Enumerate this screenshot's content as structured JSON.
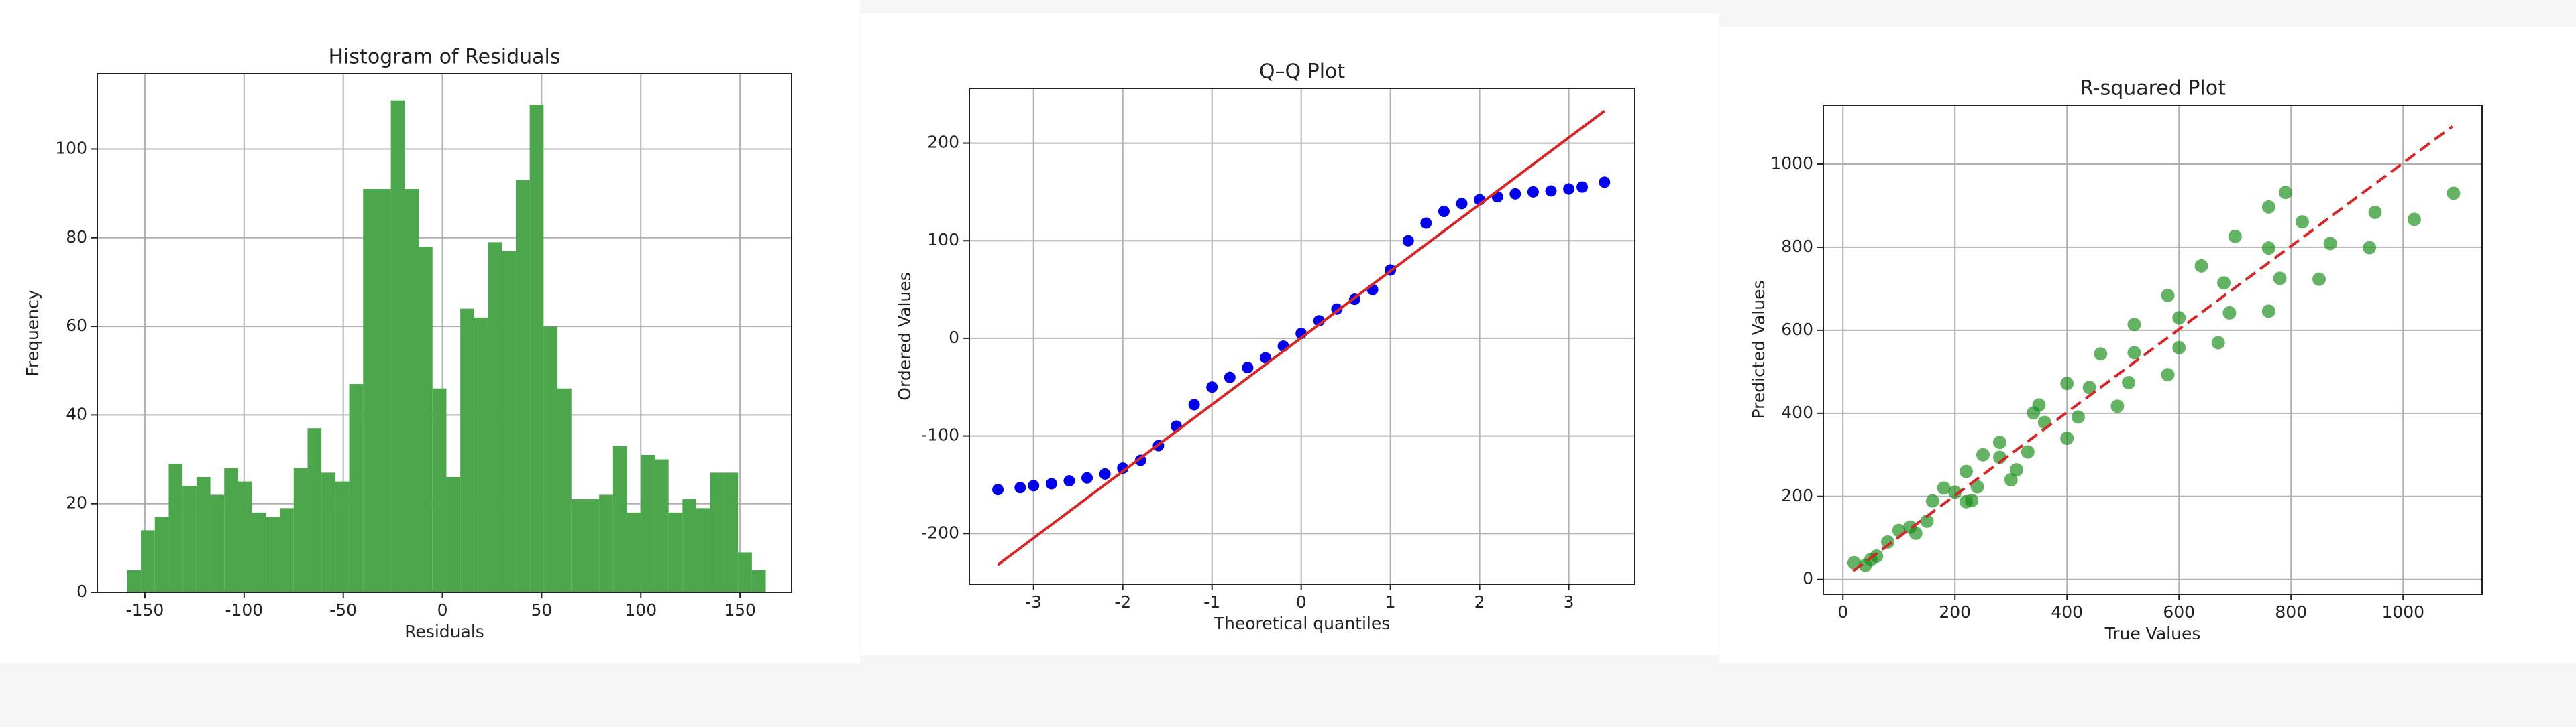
{
  "chart_data": [
    {
      "type": "histogram",
      "title": "Histogram of Residuals",
      "x_label": "Residuals",
      "y_label": "Frequency",
      "bins": [
        -159,
        -152,
        -145,
        -138,
        -131,
        -124,
        -117,
        -110,
        -103,
        -96,
        -89,
        -82,
        -75,
        -68,
        -61,
        -54,
        -47,
        -40,
        -33,
        -26,
        -19,
        -12,
        -5,
        2,
        9,
        16,
        23,
        30,
        37,
        44,
        51,
        58,
        65,
        72,
        79,
        86,
        93,
        100,
        107,
        114,
        121,
        128,
        135,
        142,
        149,
        156,
        163
      ],
      "values": [
        5,
        14,
        17,
        29,
        24,
        26,
        22,
        28,
        25,
        18,
        17,
        19,
        28,
        37,
        27,
        25,
        47,
        91,
        91,
        111,
        91,
        78,
        46,
        26,
        64,
        62,
        79,
        77,
        93,
        110,
        60,
        46,
        21,
        21,
        22,
        33,
        18,
        31,
        30,
        18,
        21,
        19,
        27,
        27,
        9,
        5
      ],
      "color": "#4ca64c",
      "xlim": [
        -174,
        176
      ],
      "xticks": [
        -150,
        -100,
        -50,
        0,
        50,
        100,
        150
      ],
      "ylim": [
        0,
        117
      ],
      "yticks": [
        0,
        20,
        40,
        60,
        80,
        100
      ],
      "grid": true
    },
    {
      "type": "scatter",
      "title": "Q–Q Plot",
      "x_label": "Theoretical quantiles",
      "y_label": "Ordered Values",
      "x": [
        -3.4,
        -3.15,
        -3.0,
        -2.8,
        -2.6,
        -2.4,
        -2.2,
        -2.0,
        -1.8,
        -1.6,
        -1.4,
        -1.2,
        -1.0,
        -0.8,
        -0.6,
        -0.4,
        -0.2,
        0,
        0.2,
        0.4,
        0.6,
        0.8,
        1.0,
        1.2,
        1.4,
        1.6,
        1.8,
        2.0,
        2.2,
        2.4,
        2.6,
        2.8,
        3.0,
        3.15,
        3.4
      ],
      "values": [
        -155,
        -153,
        -151,
        -149,
        -146,
        -143,
        -139,
        -133,
        -125,
        -110,
        -90,
        -68,
        -50,
        -40,
        -30,
        -20,
        -8,
        5,
        18,
        30,
        40,
        50,
        70,
        100,
        118,
        130,
        138,
        142,
        145,
        148,
        150,
        151,
        153,
        155,
        160
      ],
      "color": "#0000ee",
      "reference_line": {
        "x": [
          -3.4,
          3.4
        ],
        "values": [
          -232,
          233
        ],
        "color": "#d62728",
        "dashed": false
      },
      "xlim": [
        -3.72,
        3.74
      ],
      "xticks": [
        -3,
        -2,
        -1,
        0,
        1,
        2,
        3
      ],
      "ylim": [
        -252,
        256
      ],
      "yticks": [
        -200,
        -100,
        0,
        100,
        200
      ],
      "grid": true
    },
    {
      "type": "scatter",
      "title": "R-squared Plot",
      "x_label": "True Values",
      "y_label": "Predicted Values",
      "x": [
        100,
        160,
        220,
        280,
        340,
        400,
        460,
        520,
        580,
        640,
        700,
        760,
        790,
        120,
        200,
        280,
        360,
        440,
        520,
        600,
        680,
        760,
        820,
        60,
        150,
        240,
        330,
        420,
        510,
        600,
        690,
        780,
        870,
        950,
        40,
        130,
        220,
        310,
        400,
        490,
        580,
        670,
        760,
        850,
        940,
        1020,
        1090,
        20,
        50,
        80,
        180,
        250,
        300,
        350,
        230
      ],
      "values": [
        118,
        189,
        260,
        330,
        401,
        472,
        543,
        614,
        684,
        755,
        826,
        897,
        932,
        126,
        210,
        294,
        378,
        462,
        546,
        630,
        714,
        798,
        861,
        56,
        140,
        223,
        307,
        391,
        474,
        558,
        642,
        725,
        809,
        884,
        34,
        111,
        187,
        264,
        340,
        417,
        493,
        570,
        646,
        723,
        799,
        867,
        930,
        40,
        48,
        90,
        220,
        300,
        240,
        420,
        190
      ],
      "color": "#118a11",
      "reference_line": {
        "x": [
          18,
          1088
        ],
        "values": [
          20,
          1091
        ],
        "color": "#d62728",
        "dashed": true
      },
      "xlim": [
        -35,
        1141
      ],
      "xticks": [
        0,
        200,
        400,
        600,
        800,
        1000
      ],
      "ylim": [
        -36,
        1142
      ],
      "yticks": [
        0,
        200,
        400,
        600,
        800,
        1000
      ],
      "grid": true
    }
  ]
}
